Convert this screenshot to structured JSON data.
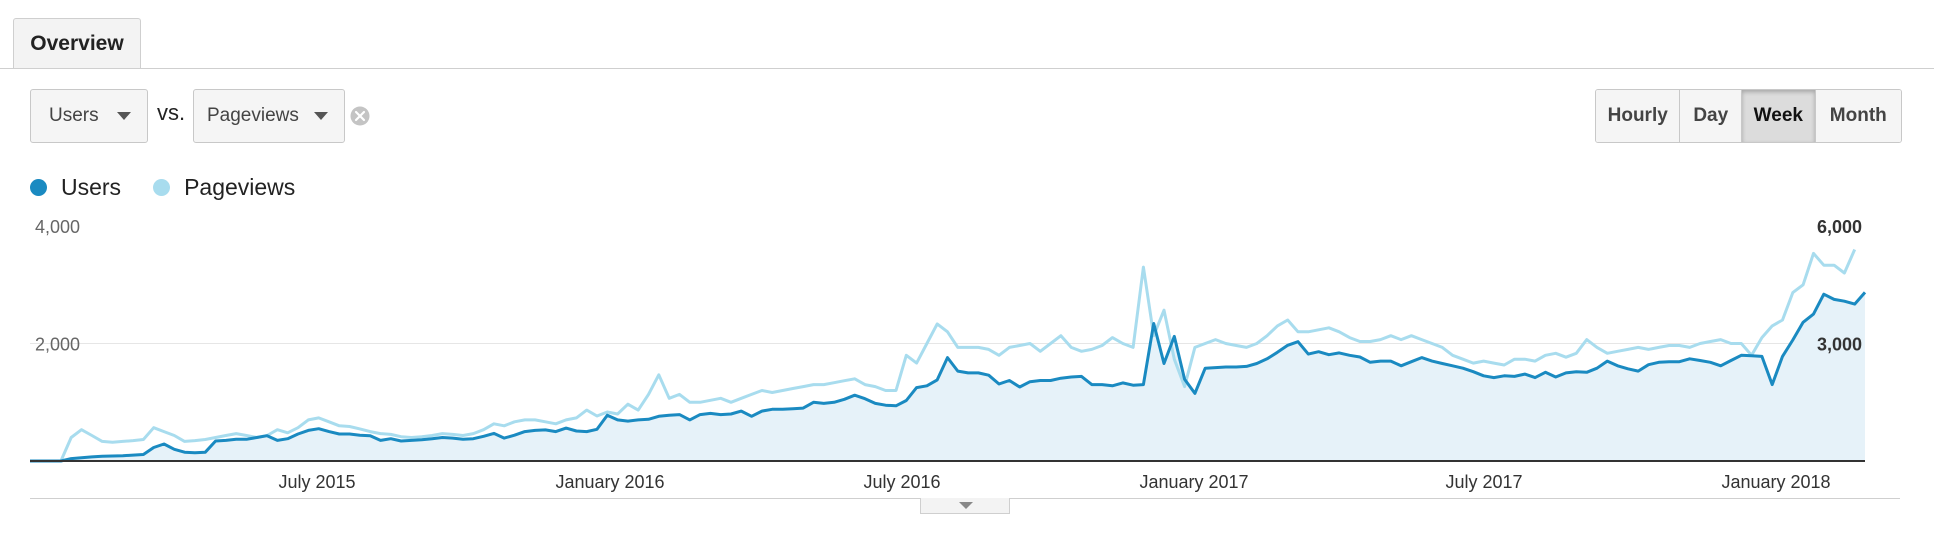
{
  "tabs": {
    "overview_label": "Overview"
  },
  "controls": {
    "metric1": {
      "selected": "Users"
    },
    "vs_label": "vs.",
    "metric2": {
      "selected": "Pageviews"
    },
    "granularity": [
      "Hourly",
      "Day",
      "Week",
      "Month"
    ],
    "granularity_active": "Week"
  },
  "legend": [
    {
      "name": "Users",
      "color": "#1a8ac1"
    },
    {
      "name": "Pageviews",
      "color": "#a8dcee"
    }
  ],
  "chart_data": {
    "type": "line",
    "x_ticks": [
      "July 2015",
      "January 2016",
      "July 2016",
      "January 2017",
      "July 2017",
      "January 2018"
    ],
    "y_left_ticks": [
      "4,000",
      "2,000"
    ],
    "y_right_ticks": [
      "6,000",
      "3,000"
    ],
    "y_left_range": [
      0,
      4000
    ],
    "y_right_range": [
      0,
      6000
    ],
    "series": [
      {
        "name": "Users",
        "axis": "left",
        "color": "#1a8ac1",
        "area_fill": "#e6f2f9",
        "values": [
          0,
          0,
          0,
          0,
          40,
          55,
          70,
          80,
          85,
          90,
          100,
          110,
          230,
          290,
          200,
          150,
          140,
          150,
          340,
          350,
          370,
          370,
          400,
          430,
          350,
          380,
          460,
          520,
          550,
          500,
          460,
          460,
          440,
          430,
          350,
          380,
          340,
          350,
          360,
          380,
          400,
          390,
          370,
          380,
          420,
          470,
          390,
          440,
          500,
          520,
          530,
          500,
          560,
          510,
          500,
          540,
          780,
          700,
          680,
          700,
          710,
          760,
          780,
          790,
          700,
          790,
          810,
          790,
          800,
          850,
          760,
          850,
          880,
          880,
          890,
          900,
          1000,
          980,
          1000,
          1050,
          1120,
          1060,
          980,
          950,
          940,
          1030,
          1250,
          1280,
          1380,
          1760,
          1530,
          1500,
          1500,
          1460,
          1310,
          1370,
          1260,
          1350,
          1370,
          1370,
          1410,
          1430,
          1440,
          1300,
          1300,
          1280,
          1330,
          1290,
          1300,
          2340,
          1660,
          2120,
          1390,
          1150,
          1580,
          1590,
          1600,
          1600,
          1610,
          1660,
          1740,
          1850,
          1970,
          2030,
          1820,
          1860,
          1810,
          1840,
          1800,
          1770,
          1680,
          1700,
          1700,
          1620,
          1690,
          1760,
          1700,
          1660,
          1620,
          1580,
          1520,
          1450,
          1420,
          1450,
          1440,
          1480,
          1420,
          1510,
          1430,
          1500,
          1520,
          1510,
          1580,
          1700,
          1620,
          1570,
          1530,
          1640,
          1680,
          1690,
          1690,
          1740,
          1710,
          1680,
          1620,
          1710,
          1800,
          1790,
          1780,
          1300,
          1780,
          2060,
          2360,
          2500,
          2840,
          2750,
          2720,
          2670,
          2870
        ],
        "estimated": true
      },
      {
        "name": "Pageviews",
        "axis": "right",
        "color": "#a8dcee",
        "values": [
          0,
          0,
          0,
          0,
          600,
          800,
          650,
          500,
          480,
          500,
          520,
          550,
          850,
          750,
          650,
          500,
          520,
          550,
          600,
          650,
          700,
          650,
          600,
          650,
          800,
          720,
          850,
          1050,
          1100,
          1000,
          900,
          880,
          820,
          750,
          700,
          680,
          620,
          600,
          620,
          650,
          700,
          680,
          650,
          700,
          800,
          950,
          900,
          1000,
          1050,
          1050,
          1000,
          950,
          1050,
          1100,
          1300,
          1150,
          1250,
          1200,
          1450,
          1300,
          1700,
          2200,
          1600,
          1700,
          1500,
          1500,
          1550,
          1600,
          1500,
          1600,
          1700,
          1800,
          1750,
          1800,
          1850,
          1900,
          1950,
          1950,
          2000,
          2050,
          2100,
          1950,
          1900,
          1800,
          1800,
          2700,
          2500,
          3000,
          3500,
          3300,
          2900,
          2900,
          2900,
          2850,
          2700,
          2900,
          2950,
          3000,
          2800,
          3000,
          3200,
          2900,
          2800,
          2850,
          2950,
          3150,
          3000,
          2900,
          4950,
          3200,
          3850,
          2600,
          1900,
          2900,
          3000,
          3100,
          3000,
          2950,
          2900,
          3000,
          3200,
          3450,
          3600,
          3300,
          3300,
          3350,
          3400,
          3300,
          3150,
          3050,
          3050,
          3100,
          3200,
          3100,
          3200,
          3100,
          3000,
          2900,
          2700,
          2600,
          2500,
          2550,
          2500,
          2450,
          2600,
          2600,
          2550,
          2700,
          2750,
          2650,
          2750,
          3100,
          2900,
          2750,
          2800,
          2850,
          2900,
          2850,
          2900,
          2950,
          2950,
          2900,
          3000,
          3050,
          3100,
          3000,
          3000,
          2700,
          3150,
          3450,
          3600,
          4300,
          4500,
          5300,
          5000,
          5000,
          4800,
          5400
        ],
        "estimated": true
      }
    ]
  }
}
